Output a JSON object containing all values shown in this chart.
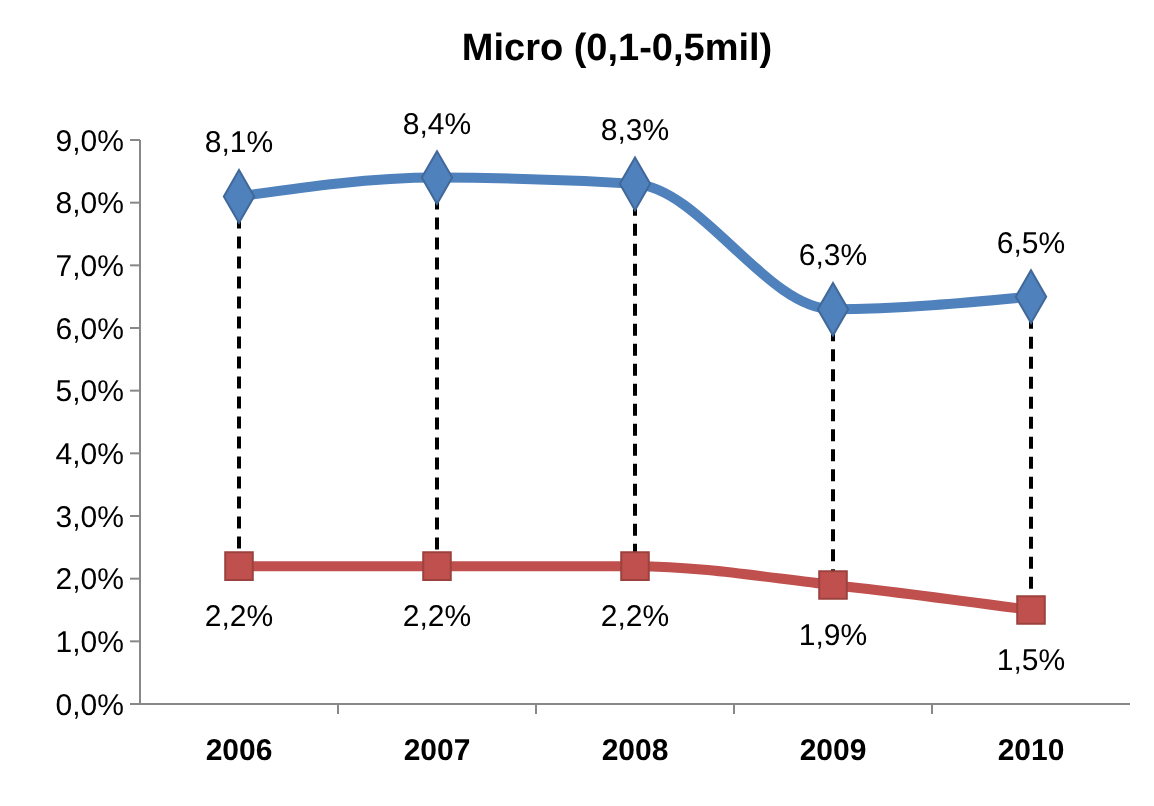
{
  "chart_data": {
    "type": "line",
    "title": "Micro (0,1-0,5mil)",
    "categories": [
      "2006",
      "2007",
      "2008",
      "2009",
      "2010"
    ],
    "series": [
      {
        "color": "#4f81bd",
        "marker": "diamond",
        "values": [
          8.1,
          8.4,
          8.3,
          6.3,
          6.5
        ],
        "value_labels": [
          "8,1%",
          "8,4%",
          "8,3%",
          "6,3%",
          "6,5%"
        ]
      },
      {
        "color": "#c0504d",
        "marker": "square",
        "values": [
          2.2,
          2.2,
          2.2,
          1.9,
          1.5
        ],
        "value_labels": [
          "2,2%",
          "2,2%",
          "2,2%",
          "1,9%",
          "1,5%"
        ]
      }
    ],
    "ylim": [
      0,
      9
    ],
    "yticks": [
      {
        "value": 0,
        "label": "0,0%"
      },
      {
        "value": 1,
        "label": "1,0%"
      },
      {
        "value": 2,
        "label": "2,0%"
      },
      {
        "value": 3,
        "label": "3,0%"
      },
      {
        "value": 4,
        "label": "4,0%"
      },
      {
        "value": 5,
        "label": "5,0%"
      },
      {
        "value": 6,
        "label": "6,0%"
      },
      {
        "value": 7,
        "label": "7,0%"
      },
      {
        "value": 8,
        "label": "8,0%"
      },
      {
        "value": 9,
        "label": "9,0%"
      }
    ],
    "grid": false
  }
}
